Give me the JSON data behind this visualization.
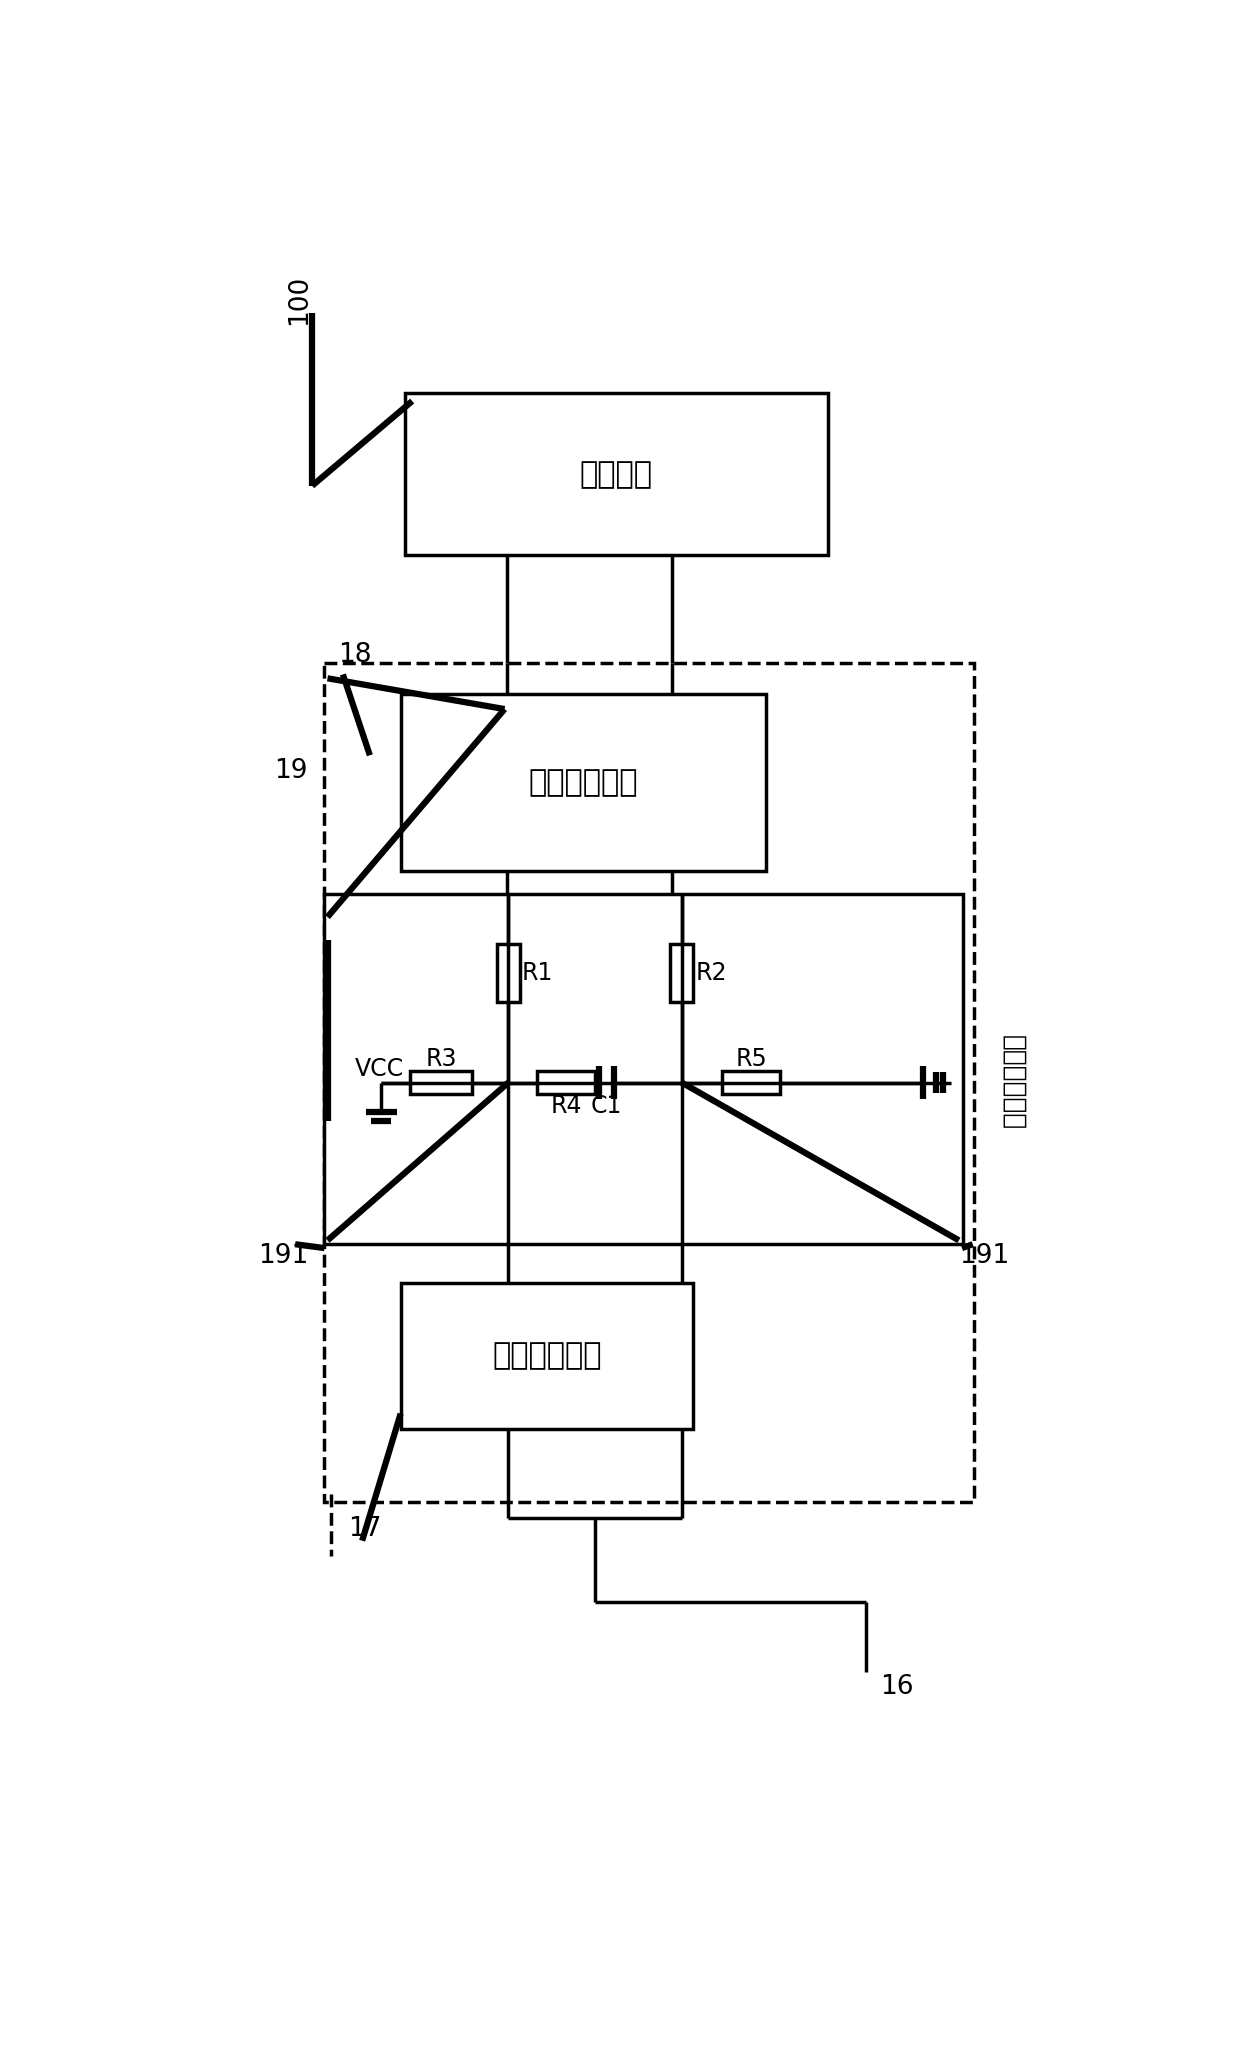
{
  "bg_color": "#ffffff",
  "line_color": "#000000",
  "labels": {
    "module_100": "控制模块",
    "module_receive": "接收接口芯片",
    "module_external": "对外数采接口",
    "label_100": "100",
    "label_18": "18",
    "label_19": "19",
    "label_17": "17",
    "label_16": "16",
    "label_191_left": "191",
    "label_191_right": "191",
    "label_tonxun": "通讯接口单元",
    "label_VCC": "VCC",
    "label_R1": "R1",
    "label_R2": "R2",
    "label_R3": "R3",
    "label_R4": "R4",
    "label_R5": "R5",
    "label_C1": "C1"
  },
  "font_size_main": 22,
  "font_size_label": 19,
  "font_size_component": 17
}
